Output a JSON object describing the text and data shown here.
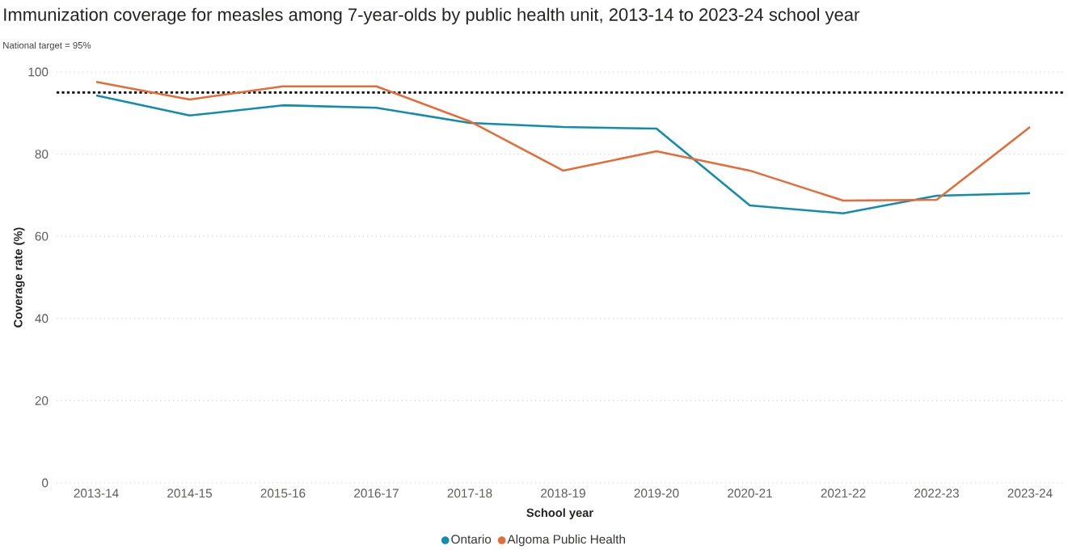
{
  "chart_data": {
    "type": "line",
    "title": "Immunization coverage for measles among 7-year-olds by public health unit, 2013-14 to 2023-24 school year",
    "subtitle": "National target = 95%",
    "xlabel": "School year",
    "ylabel": "Coverage rate (%)",
    "categories": [
      "2013-14",
      "2014-15",
      "2015-16",
      "2016-17",
      "2017-18",
      "2018-19",
      "2019-20",
      "2020-21",
      "2021-22",
      "2022-23",
      "2023-24"
    ],
    "series": [
      {
        "name": "Ontario",
        "color": "#118dab",
        "values": [
          94.3,
          89.4,
          91.9,
          91.3,
          87.6,
          86.6,
          86.2,
          67.5,
          65.6,
          69.9,
          70.5
        ]
      },
      {
        "name": "Algoma Public Health",
        "color": "#e66c37",
        "values": [
          97.6,
          93.3,
          96.5,
          96.5,
          88.0,
          76.0,
          80.7,
          76.0,
          68.7,
          68.9,
          86.6
        ]
      }
    ],
    "ylim": [
      0,
      100
    ],
    "yticks": [
      0,
      20,
      40,
      60,
      80,
      100
    ],
    "grid": "y",
    "legend": "bottom",
    "line_style": "solid",
    "marker": "none",
    "ref_lines": [
      {
        "axis": "y",
        "value": 95,
        "color": "#000000",
        "line_style": "dotted"
      }
    ]
  }
}
